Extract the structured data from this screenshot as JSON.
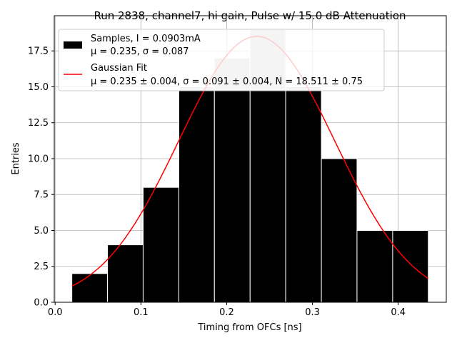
{
  "chart_data": {
    "type": "bar",
    "title": "Run 2838, channel7, hi gain, Pulse w/ 15.0 dB Attenuation",
    "xlabel": "Timing from OFCs [ns]",
    "ylabel": "Entries",
    "xlim": [
      -0.001,
      0.456
    ],
    "ylim": [
      0,
      19.95
    ],
    "grid": true,
    "legend_position": "top-left",
    "xticks": [
      0.0,
      0.1,
      0.2,
      0.3,
      0.4
    ],
    "xtick_labels": [
      "0.0",
      "0.1",
      "0.2",
      "0.3",
      "0.4"
    ],
    "yticks": [
      0.0,
      2.5,
      5.0,
      7.5,
      10.0,
      12.5,
      15.0,
      17.5
    ],
    "ytick_labels": [
      "0.0",
      "2.5",
      "5.0",
      "7.5",
      "10.0",
      "12.5",
      "15.0",
      "17.5"
    ],
    "histogram": {
      "bin_edges": [
        0.0195,
        0.0611,
        0.1026,
        0.1442,
        0.1857,
        0.2273,
        0.2688,
        0.3104,
        0.3519,
        0.3935,
        0.435
      ],
      "counts": [
        2,
        4,
        8,
        15,
        17,
        19,
        15,
        10,
        5,
        5
      ],
      "color": "#000000",
      "highlight_color": "#c8c8c8"
    },
    "fit": {
      "type": "gaussian",
      "mu": 0.235,
      "sigma": 0.091,
      "amplitude": 18.511,
      "x_range": [
        0.0195,
        0.435
      ],
      "color": "#ff0000"
    },
    "legend": [
      {
        "line1": "Samples, I = 0.0903mA",
        "line2": "μ = 0.235, σ = 0.087"
      },
      {
        "line1": "Gaussian Fit",
        "line2": "μ = 0.235 ± 0.004, σ = 0.091 ± 0.004, N = 18.511 ± 0.75"
      }
    ]
  }
}
